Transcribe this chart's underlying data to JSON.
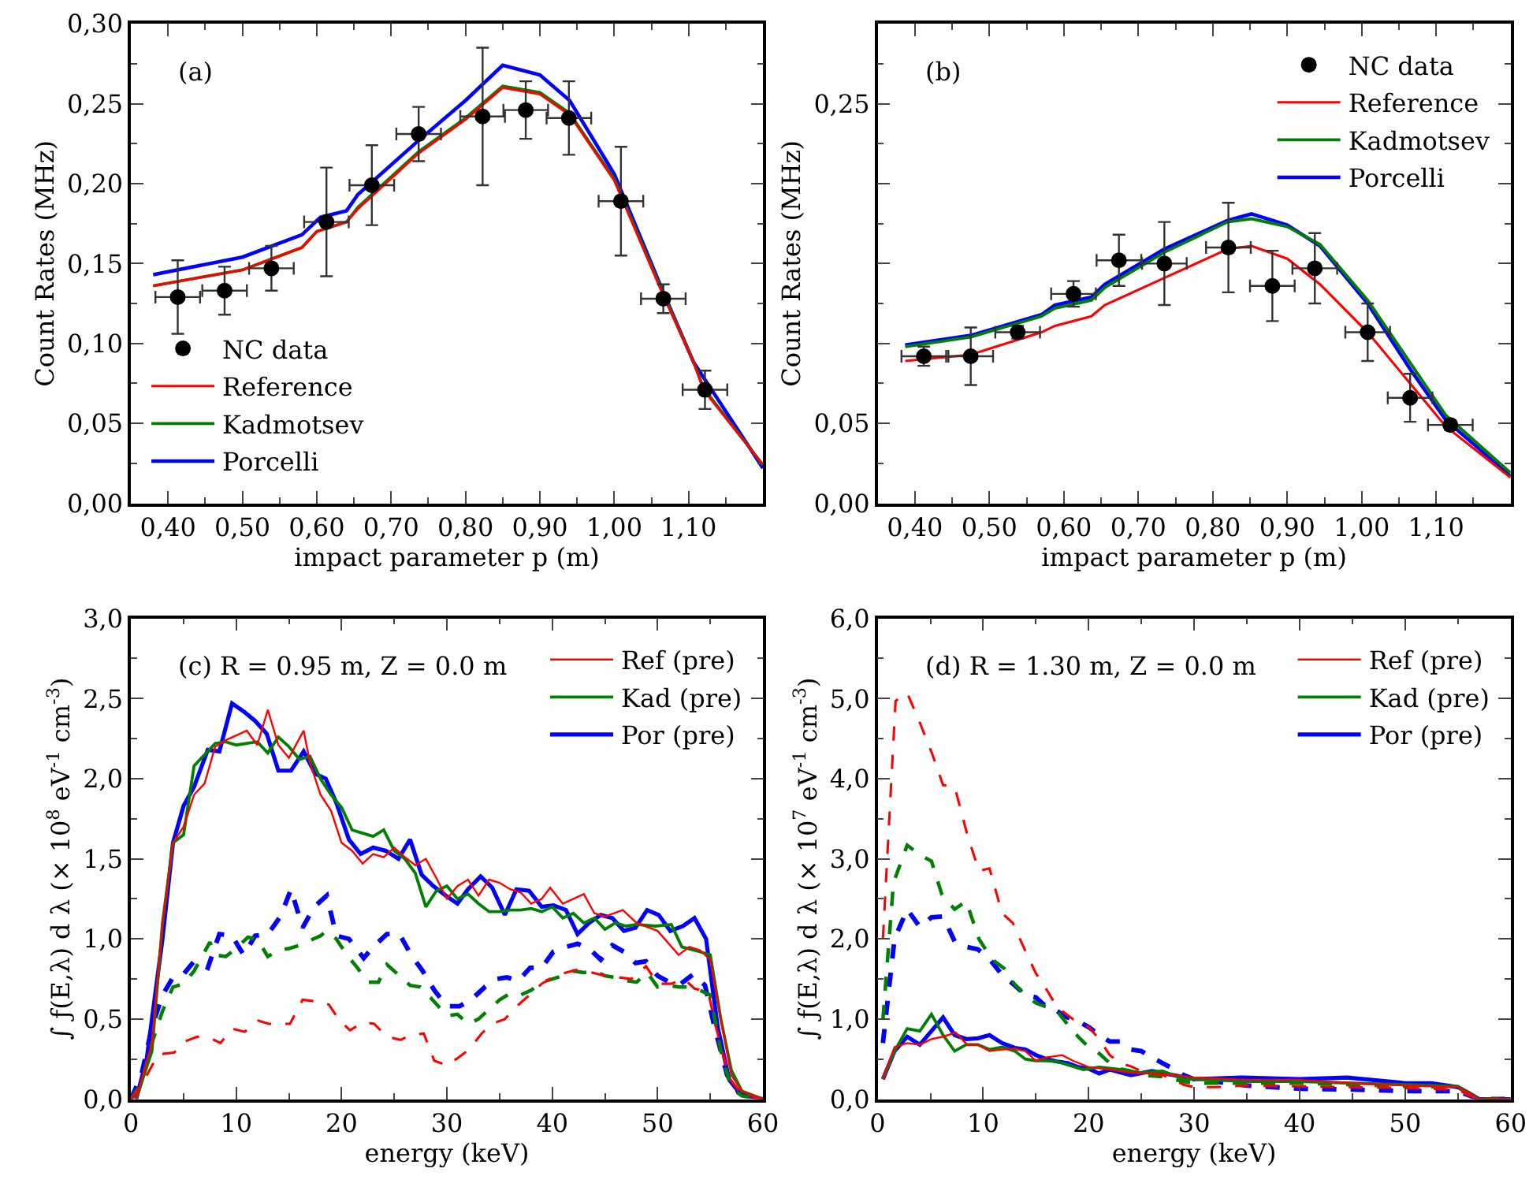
{
  "chart_data": [
    {
      "type": "line",
      "title": "(a)",
      "xlabel": "impact parameter p (m)",
      "ylabel": "Count Rates (MHz)",
      "legend": "bottom left",
      "xlim": [
        0.35,
        1.2
      ],
      "xticks": [
        {
          "value": 0.4,
          "label": "0,40"
        },
        {
          "value": 0.5,
          "label": "0,50"
        },
        {
          "value": 0.6,
          "label": "0,60"
        },
        {
          "value": 0.7,
          "label": "0,70"
        },
        {
          "value": 0.8,
          "label": "0,80"
        },
        {
          "value": 0.9,
          "label": "0,90"
        },
        {
          "value": 1.0,
          "label": "1,00"
        },
        {
          "value": 1.1,
          "label": "1,10"
        }
      ],
      "ylim": [
        0,
        0.3
      ],
      "yticks": [
        {
          "value": 0,
          "label": "0,00"
        },
        {
          "value": 0.05,
          "label": "0,05"
        },
        {
          "value": 0.1,
          "label": "0,10"
        },
        {
          "value": 0.15,
          "label": "0,15"
        },
        {
          "value": 0.2,
          "label": "0,20"
        },
        {
          "value": 0.25,
          "label": "0,25"
        },
        {
          "value": 0.3,
          "label": "0,30"
        }
      ],
      "series": [
        {
          "name": "NC data",
          "type": "scatter",
          "marker": "circle",
          "color": "#000000",
          "x": [
            0.413,
            0.476,
            0.539,
            0.613,
            0.674,
            0.737,
            0.823,
            0.881,
            0.939,
            1.009,
            1.066,
            1.122
          ],
          "values": [
            0.129,
            0.133,
            0.147,
            0.176,
            0.199,
            0.231,
            0.242,
            0.246,
            0.241,
            0.189,
            0.128,
            0.071
          ],
          "errors": [
            0.023,
            0.015,
            0.014,
            0.034,
            0.025,
            0.017,
            0.043,
            0.018,
            0.023,
            0.034,
            0.009,
            0.012
          ],
          "xerrors": [
            0.03,
            0.03,
            0.03,
            0.03,
            0.03,
            0.03,
            0.03,
            0.03,
            0.03,
            0.03,
            0.03,
            0.03
          ]
        },
        {
          "name": "Reference",
          "type": "line",
          "color": "#ff0000",
          "line_style": "solid",
          "x": [
            0.38,
            0.5,
            0.58,
            0.6,
            0.64,
            0.655,
            0.737,
            0.8,
            0.85,
            0.9,
            0.94,
            1.0,
            1.066,
            1.107,
            1.12,
            1.2
          ],
          "values": [
            0.136,
            0.146,
            0.16,
            0.17,
            0.176,
            0.184,
            0.219,
            0.24,
            0.26,
            0.256,
            0.243,
            0.202,
            0.13,
            0.088,
            0.071,
            0.024
          ]
        },
        {
          "name": "Kadmotsev",
          "type": "line",
          "color": "#008000",
          "line_style": "solid",
          "x": [
            0.38,
            0.5,
            0.58,
            0.6,
            0.64,
            0.655,
            0.737,
            0.8,
            0.85,
            0.9,
            0.94,
            1.0,
            1.066,
            1.107,
            1.12,
            1.2
          ],
          "values": [
            0.136,
            0.146,
            0.16,
            0.17,
            0.176,
            0.185,
            0.22,
            0.241,
            0.261,
            0.257,
            0.244,
            0.203,
            0.131,
            0.088,
            0.072,
            0.024
          ]
        },
        {
          "name": "Porcelli",
          "type": "line",
          "color": "#0000ff",
          "line_style": "solid",
          "x": [
            0.38,
            0.5,
            0.58,
            0.605,
            0.64,
            0.655,
            0.737,
            0.8,
            0.85,
            0.9,
            0.94,
            1.0,
            1.066,
            1.107,
            1.2
          ],
          "values": [
            0.143,
            0.154,
            0.168,
            0.179,
            0.183,
            0.193,
            0.227,
            0.252,
            0.274,
            0.268,
            0.252,
            0.206,
            0.132,
            0.088,
            0.022
          ]
        }
      ]
    },
    {
      "type": "line",
      "title": "(b)",
      "xlabel": "impact parameter p (m)",
      "ylabel": "Count Rates (MHz)",
      "legend": "top right",
      "xlim": [
        0.35,
        1.2
      ],
      "xticks": [
        {
          "value": 0.4,
          "label": "0,40"
        },
        {
          "value": 0.5,
          "label": "0,50"
        },
        {
          "value": 0.6,
          "label": "0,60"
        },
        {
          "value": 0.7,
          "label": "0,70"
        },
        {
          "value": 0.8,
          "label": "0,80"
        },
        {
          "value": 0.9,
          "label": "0,90"
        },
        {
          "value": 1.0,
          "label": "1,00"
        },
        {
          "value": 1.1,
          "label": "1,10"
        }
      ],
      "ylim": [
        0,
        0.3
      ],
      "yticks": [
        {
          "value": 0,
          "label": "0,00"
        },
        {
          "value": 0.05,
          "label": "0,05"
        },
        {
          "value": 0.1,
          "label": null
        },
        {
          "value": 0.15,
          "label": null
        },
        {
          "value": 0.2,
          "label": null
        },
        {
          "value": 0.25,
          "label": "0,25"
        },
        {
          "value": 0.3,
          "label": null
        }
      ],
      "series": [
        {
          "name": "NC data",
          "type": "scatter",
          "marker": "circle",
          "color": "#000000",
          "x": [
            0.412,
            0.475,
            0.538,
            0.613,
            0.674,
            0.735,
            0.821,
            0.88,
            0.937,
            1.008,
            1.065,
            1.119
          ],
          "values": [
            0.092,
            0.092,
            0.107,
            0.131,
            0.152,
            0.15,
            0.16,
            0.136,
            0.147,
            0.107,
            0.066,
            0.049
          ],
          "errors": [
            0.006,
            0.018,
            0.004,
            0.008,
            0.016,
            0.026,
            0.028,
            0.022,
            0.022,
            0.018,
            0.015,
            0.003
          ],
          "xerrors": [
            0.03,
            0.03,
            0.03,
            0.03,
            0.03,
            0.03,
            0.03,
            0.03,
            0.03,
            0.03,
            0.03,
            0.03
          ]
        },
        {
          "name": "Reference",
          "type": "line",
          "color": "#ff0000",
          "line_style": "solid",
          "x": [
            0.387,
            0.475,
            0.57,
            0.588,
            0.637,
            0.655,
            0.735,
            0.82,
            0.852,
            0.9,
            0.944,
            1.008,
            1.065,
            1.113,
            1.2
          ],
          "values": [
            0.089,
            0.093,
            0.107,
            0.111,
            0.117,
            0.124,
            0.141,
            0.159,
            0.161,
            0.153,
            0.137,
            0.107,
            0.075,
            0.048,
            0.016
          ]
        },
        {
          "name": "Kadmotsev",
          "type": "line",
          "color": "#008000",
          "line_style": "solid",
          "x": [
            0.387,
            0.475,
            0.57,
            0.588,
            0.637,
            0.655,
            0.735,
            0.82,
            0.852,
            0.9,
            0.944,
            1.008,
            1.065,
            1.113,
            1.2
          ],
          "values": [
            0.098,
            0.104,
            0.117,
            0.122,
            0.127,
            0.135,
            0.157,
            0.176,
            0.178,
            0.173,
            0.162,
            0.127,
            0.088,
            0.055,
            0.019
          ]
        },
        {
          "name": "Porcelli",
          "type": "line",
          "color": "#0000ff",
          "line_style": "solid",
          "x": [
            0.387,
            0.475,
            0.57,
            0.588,
            0.637,
            0.655,
            0.735,
            0.82,
            0.852,
            0.9,
            0.944,
            1.008,
            1.065,
            1.113,
            1.2
          ],
          "values": [
            0.099,
            0.105,
            0.118,
            0.124,
            0.129,
            0.137,
            0.159,
            0.177,
            0.181,
            0.174,
            0.161,
            0.125,
            0.084,
            0.052,
            0.017
          ]
        }
      ]
    },
    {
      "type": "line",
      "title": "(c) R = 0.95 m, Z = 0.0 m",
      "xlabel": "energy (keV)",
      "ylabel": "∫ ƒ(E,λ) d λ (× 10$^{8}$ eV$^{-1}$ cm$^{-3}$)",
      "legend": "top right",
      "xlim": [
        0,
        60
      ],
      "xticks": [
        0,
        10,
        20,
        30,
        40,
        50,
        60
      ],
      "ylim": [
        0,
        3
      ],
      "yticks": [
        {
          "value": 0,
          "label": "0,0"
        },
        {
          "value": 0.5,
          "label": "0,5"
        },
        {
          "value": 1,
          "label": "1,0"
        },
        {
          "value": 1.5,
          "label": "1,5"
        },
        {
          "value": 2,
          "label": "2,0"
        },
        {
          "value": 2.5,
          "label": "2,5"
        },
        {
          "value": 3,
          "label": "3,0"
        }
      ],
      "series": [
        {
          "name": "Ref (pre)",
          "color": "#ff0000",
          "line_style": "solid",
          "x": [
            0.5,
            2,
            3,
            4,
            5,
            6,
            7,
            8,
            9,
            10,
            11,
            12,
            13,
            14,
            15,
            16.4,
            17,
            18,
            19,
            20,
            21,
            22,
            23,
            24,
            25,
            26,
            27,
            28,
            29,
            30,
            31,
            32,
            33,
            34,
            35,
            36,
            37,
            38,
            39,
            39.8,
            41,
            43,
            44,
            45,
            46.7,
            48,
            50,
            52,
            53,
            54,
            55,
            56,
            57,
            58,
            60
          ],
          "values": [
            0,
            0.35,
            1.1,
            1.6,
            1.7,
            1.9,
            1.97,
            2.2,
            2.24,
            2.27,
            2.3,
            2.21,
            2.43,
            2.21,
            2.13,
            2.3,
            2.1,
            1.9,
            1.8,
            1.6,
            1.55,
            1.47,
            1.53,
            1.51,
            1.57,
            1.51,
            1.46,
            1.5,
            1.38,
            1.25,
            1.33,
            1.37,
            1.27,
            1.37,
            1.35,
            1.31,
            1.29,
            1.22,
            1.25,
            1.32,
            1.22,
            1.28,
            1.16,
            1.14,
            1.18,
            1.1,
            1.05,
            0.9,
            0.95,
            0.93,
            0.87,
            0.5,
            0.15,
            0.05,
            0
          ]
        },
        {
          "color": "#ff0000",
          "line_style": "dashed",
          "x": [
            0,
            1.1,
            2.6,
            4.1,
            5.1,
            6.3,
            7.6,
            8.5,
            9.6,
            10.8,
            12.1,
            13.1,
            15.1,
            16.3,
            17.6,
            18.8,
            19.8,
            20.8,
            22.1,
            23.1,
            24.3,
            25.6,
            26.6,
            27.8,
            28.8,
            30,
            31.1,
            32.1,
            33.3,
            34.3,
            35.5,
            36.8,
            38,
            39,
            40,
            41.3,
            42.5,
            43.8,
            45,
            46.3,
            47.5,
            48.9,
            50,
            51.3,
            52.5,
            53.5,
            54.8,
            55.5,
            56.8,
            58,
            60
          ],
          "values": [
            0,
            0.1,
            0.28,
            0.29,
            0.36,
            0.39,
            0.38,
            0.35,
            0.44,
            0.42,
            0.49,
            0.47,
            0.47,
            0.62,
            0.61,
            0.59,
            0.49,
            0.43,
            0.48,
            0.47,
            0.39,
            0.37,
            0.4,
            0.41,
            0.24,
            0.21,
            0.26,
            0.31,
            0.41,
            0.47,
            0.5,
            0.59,
            0.66,
            0.72,
            0.76,
            0.79,
            0.81,
            0.79,
            0.77,
            0.76,
            0.75,
            0.83,
            0.72,
            0.72,
            0.75,
            0.69,
            0.67,
            0.46,
            0.13,
            0.03,
            0
          ]
        },
        {
          "name": "Kad (pre)",
          "color": "#008000",
          "line_style": "solid",
          "x": [
            0.5,
            2,
            3,
            4,
            5,
            6,
            7,
            8,
            9,
            10,
            11,
            12,
            13,
            14,
            15,
            16,
            17,
            18,
            19,
            20,
            21,
            22,
            23,
            24,
            25,
            26,
            27,
            28,
            29,
            30,
            31,
            32,
            33,
            34,
            35,
            36,
            37,
            38,
            39,
            40,
            41,
            42,
            43,
            44,
            45,
            46,
            47,
            48,
            49.8,
            51.3,
            52.3,
            54,
            55,
            56,
            57,
            58,
            60
          ],
          "values": [
            0,
            0.3,
            1.1,
            1.6,
            1.65,
            2.08,
            2.15,
            2.22,
            2.23,
            2.21,
            2.22,
            2.23,
            2.16,
            2.26,
            2.2,
            2.12,
            2.14,
            2.0,
            1.9,
            1.82,
            1.68,
            1.66,
            1.64,
            1.68,
            1.55,
            1.5,
            1.41,
            1.2,
            1.3,
            1.33,
            1.25,
            1.28,
            1.22,
            1.17,
            1.17,
            1.18,
            1.18,
            1.19,
            1.17,
            1.2,
            1.13,
            1.16,
            1.1,
            1.13,
            1.06,
            1.1,
            1.08,
            1.09,
            1.08,
            1.09,
            0.95,
            0.92,
            0.9,
            0.5,
            0.18,
            0.05,
            0
          ]
        },
        {
          "color": "#008000",
          "line_style": "dashed",
          "x": [
            0,
            1,
            2,
            3,
            4,
            5,
            6,
            7.5,
            8,
            9,
            10,
            11.1,
            12,
            13,
            14,
            15,
            16,
            17,
            18,
            18.6,
            19.5,
            20.5,
            21.5,
            22.5,
            23.5,
            24.3,
            25.5,
            26.5,
            27.5,
            28.5,
            30,
            31,
            32,
            33,
            34,
            35,
            36,
            37,
            38,
            39,
            40,
            41,
            42,
            43,
            44,
            45,
            46,
            47,
            48,
            49,
            50,
            51,
            52,
            53,
            54,
            55,
            56,
            57,
            58,
            60
          ],
          "values": [
            0,
            0.1,
            0.35,
            0.55,
            0.7,
            0.72,
            0.8,
            0.98,
            0.9,
            0.89,
            0.94,
            1.01,
            1.0,
            0.89,
            0.93,
            0.94,
            0.96,
            0.99,
            1.02,
            1.05,
            1.0,
            0.9,
            0.82,
            0.73,
            0.73,
            0.84,
            0.77,
            0.71,
            0.7,
            0.63,
            0.52,
            0.53,
            0.47,
            0.5,
            0.56,
            0.62,
            0.66,
            0.65,
            0.68,
            0.73,
            0.75,
            0.77,
            0.8,
            0.79,
            0.8,
            0.77,
            0.76,
            0.74,
            0.73,
            0.79,
            0.7,
            0.71,
            0.7,
            0.7,
            0.68,
            0.65,
            0.3,
            0.07,
            0.02,
            0
          ]
        },
        {
          "name": "Por (pre)",
          "color": "#0000ff",
          "line_style": "solid",
          "x": [
            0.5,
            1.5,
            3,
            4,
            5,
            6,
            7.3,
            8.4,
            9.6,
            10.7,
            11.8,
            12.9,
            14,
            15.2,
            16.4,
            17.5,
            18.5,
            19.5,
            20.7,
            21.8,
            23,
            24.2,
            25.4,
            26.5,
            27.6,
            28.7,
            29.9,
            31,
            32,
            33.2,
            34.3,
            35.5,
            36.6,
            37.8,
            39,
            40.1,
            41.3,
            42.4,
            43.5,
            44.6,
            45.7,
            46.8,
            47.9,
            49,
            50.1,
            51.2,
            52.4,
            53.5,
            54.6,
            55.7,
            56.8,
            57.9,
            60
          ],
          "values": [
            0,
            0.25,
            1.0,
            1.6,
            1.83,
            1.95,
            2.18,
            2.17,
            2.47,
            2.42,
            2.36,
            2.28,
            2.05,
            2.05,
            2.17,
            2.03,
            2.0,
            1.85,
            1.62,
            1.53,
            1.57,
            1.55,
            1.5,
            1.62,
            1.4,
            1.33,
            1.27,
            1.22,
            1.31,
            1.39,
            1.32,
            1.15,
            1.31,
            1.3,
            1.2,
            1.21,
            1.18,
            1.03,
            1.1,
            1.15,
            1.13,
            1.05,
            1.07,
            1.18,
            1.15,
            1.05,
            1.08,
            1.13,
            1.0,
            0.45,
            0.12,
            0.03,
            0
          ]
        },
        {
          "color": "#0000ff",
          "line_style": "dashed",
          "x": [
            0,
            1,
            2,
            3,
            4,
            5,
            6,
            7.3,
            8.4,
            9.6,
            10.7,
            11.8,
            13,
            14.2,
            15.2,
            16.3,
            17.4,
            18.6,
            19.5,
            20.7,
            22.1,
            23,
            24.3,
            25.5,
            26.6,
            27.7,
            28.8,
            30,
            31.2,
            32.3,
            33.6,
            34.7,
            35.7,
            36.8,
            37.9,
            39,
            40.1,
            41.3,
            42.4,
            43.5,
            44.6,
            45.7,
            46.8,
            47.9,
            48.9,
            50,
            51.1,
            52.2,
            53.4,
            54.5,
            55.4,
            56.6,
            57.7,
            60
          ],
          "values": [
            0,
            0.15,
            0.45,
            0.65,
            0.76,
            0.78,
            0.86,
            0.82,
            1.03,
            1.02,
            0.9,
            1.02,
            1.03,
            1.14,
            1.31,
            1.07,
            1.2,
            1.27,
            1.02,
            1.0,
            0.88,
            0.95,
            1.03,
            1.03,
            0.9,
            0.8,
            0.68,
            0.58,
            0.58,
            0.62,
            0.7,
            0.75,
            0.76,
            0.74,
            0.82,
            0.82,
            0.92,
            0.95,
            0.97,
            0.94,
            0.87,
            0.96,
            0.92,
            0.85,
            0.86,
            0.77,
            0.73,
            0.72,
            0.78,
            0.71,
            0.45,
            0.15,
            0.04,
            0
          ]
        }
      ]
    },
    {
      "type": "line",
      "title": "(d) R = 1.30 m, Z = 0.0 m",
      "xlabel": "energy (keV)",
      "ylabel": "∫ ƒ(E,λ) d λ (× 10$^{7}$ eV$^{-1}$ cm$^{-3}$)",
      "legend": "top right",
      "xlim": [
        0,
        60
      ],
      "xticks": [
        0,
        10,
        20,
        30,
        40,
        50,
        60
      ],
      "ylim": [
        0,
        6
      ],
      "yticks": [
        {
          "value": 0,
          "label": "0,0"
        },
        {
          "value": 1,
          "label": "1,0"
        },
        {
          "value": 2,
          "label": "2,0"
        },
        {
          "value": 3,
          "label": "3,0"
        },
        {
          "value": 4,
          "label": "4,0"
        },
        {
          "value": 5,
          "label": "5,0"
        },
        {
          "value": 6,
          "label": "6,0"
        }
      ],
      "series": [
        {
          "name": "Ref (pre)",
          "color": "#ff0000",
          "line_style": "solid",
          "x": [
            0.5,
            1.6,
            2.8,
            4,
            5.1,
            6.2,
            7.4,
            8.5,
            9.5,
            10.6,
            11.8,
            13,
            14,
            15,
            16,
            17.5,
            18.5,
            20,
            22,
            24,
            26,
            28,
            30,
            35,
            40,
            45,
            50,
            55,
            56,
            57,
            60
          ],
          "values": [
            0.25,
            0.65,
            0.7,
            0.68,
            0.75,
            0.78,
            0.83,
            0.68,
            0.68,
            0.6,
            0.62,
            0.63,
            0.6,
            0.48,
            0.52,
            0.55,
            0.48,
            0.4,
            0.37,
            0.33,
            0.32,
            0.3,
            0.27,
            0.24,
            0.24,
            0.2,
            0.17,
            0.15,
            0.08,
            0,
            0
          ]
        },
        {
          "color": "#ff0000",
          "line_style": "dashed",
          "x": [
            0.5,
            1.7,
            2.8,
            4,
            5.2,
            6.2,
            7.3,
            8.5,
            9.6,
            10.6,
            11.8,
            12.8,
            14,
            15,
            16,
            17,
            18.5,
            20,
            21,
            22,
            23,
            24,
            25,
            26,
            27,
            28,
            29,
            30,
            32,
            35,
            40,
            45,
            50,
            55,
            56,
            57,
            60
          ],
          "values": [
            2.0,
            4.97,
            5.07,
            4.7,
            4.3,
            3.92,
            3.9,
            3.3,
            2.85,
            2.88,
            2.32,
            2.2,
            1.85,
            1.57,
            1.37,
            1.15,
            1.0,
            0.9,
            0.75,
            0.55,
            0.45,
            0.41,
            0.35,
            0.32,
            0.3,
            0.25,
            0.18,
            0.15,
            0.15,
            0.17,
            0.16,
            0.15,
            0.14,
            0.12,
            0.05,
            0,
            0
          ]
        },
        {
          "name": "Kad (pre)",
          "color": "#008000",
          "line_style": "solid",
          "x": [
            0.5,
            1.6,
            2.8,
            4,
            5.1,
            6.2,
            7.3,
            8.4,
            9.5,
            10.6,
            11.8,
            13,
            14,
            15,
            16,
            17,
            18,
            19.5,
            21,
            23,
            25,
            27,
            29,
            30,
            35,
            40,
            45,
            50,
            55,
            56,
            57,
            60
          ],
          "values": [
            0.25,
            0.6,
            0.88,
            0.85,
            1.06,
            0.8,
            0.6,
            0.68,
            0.68,
            0.62,
            0.65,
            0.6,
            0.5,
            0.48,
            0.48,
            0.47,
            0.43,
            0.37,
            0.4,
            0.37,
            0.33,
            0.35,
            0.25,
            0.25,
            0.22,
            0.22,
            0.2,
            0.18,
            0.16,
            0.08,
            0,
            0
          ]
        },
        {
          "color": "#008000",
          "line_style": "dashed",
          "x": [
            0.5,
            1.5,
            2.8,
            4,
            5.1,
            6.1,
            7.3,
            8.4,
            9.6,
            10.8,
            12,
            13,
            14,
            15,
            16,
            17,
            18.2,
            19,
            20,
            21,
            22,
            23,
            24,
            25,
            27,
            29,
            30,
            35,
            40,
            45,
            50,
            55,
            56,
            57,
            60
          ],
          "values": [
            1.0,
            2.7,
            3.17,
            3.05,
            2.97,
            2.55,
            2.37,
            2.47,
            2.0,
            1.75,
            1.63,
            1.43,
            1.3,
            1.2,
            1.15,
            1.1,
            0.9,
            0.78,
            0.65,
            0.57,
            0.45,
            0.38,
            0.35,
            0.3,
            0.28,
            0.22,
            0.2,
            0.2,
            0.2,
            0.18,
            0.16,
            0.15,
            0.07,
            0,
            0
          ]
        },
        {
          "name": "Por (pre)",
          "color": "#0000ff",
          "line_style": "solid",
          "x": [
            0.5,
            1.6,
            2.8,
            4,
            5.1,
            6.2,
            7.3,
            8.4,
            9.5,
            10.6,
            11.8,
            13,
            14,
            15,
            16,
            17,
            18,
            19,
            20,
            21,
            22,
            24,
            26,
            28,
            30,
            34.5,
            40,
            44.5,
            50,
            52.5,
            55,
            56,
            57,
            60
          ],
          "values": [
            0.25,
            0.6,
            0.78,
            0.68,
            0.85,
            1.02,
            0.8,
            0.75,
            0.76,
            0.8,
            0.7,
            0.64,
            0.62,
            0.55,
            0.5,
            0.47,
            0.45,
            0.4,
            0.38,
            0.32,
            0.37,
            0.3,
            0.35,
            0.3,
            0.25,
            0.27,
            0.25,
            0.27,
            0.2,
            0.2,
            0.15,
            0.08,
            0,
            0
          ]
        },
        {
          "color": "#0000ff",
          "line_style": "dashed",
          "x": [
            0.5,
            1.6,
            2.8,
            4,
            5.1,
            6.2,
            7.3,
            8.4,
            9.5,
            10.6,
            11.8,
            13,
            14,
            15,
            16,
            17,
            18,
            19,
            20,
            21,
            22,
            23,
            24,
            25,
            26,
            27,
            28,
            29,
            30,
            32,
            35,
            40,
            45,
            50,
            55,
            56,
            57,
            60
          ],
          "values": [
            0.7,
            2.0,
            2.37,
            2.15,
            2.27,
            2.28,
            1.97,
            1.9,
            1.87,
            1.75,
            1.55,
            1.42,
            1.3,
            1.27,
            1.15,
            1.1,
            1.02,
            0.97,
            0.9,
            0.8,
            0.72,
            0.72,
            0.62,
            0.6,
            0.52,
            0.45,
            0.38,
            0.3,
            0.25,
            0.22,
            0.17,
            0.13,
            0.12,
            0.1,
            0.1,
            0.05,
            0,
            0
          ]
        }
      ]
    }
  ]
}
